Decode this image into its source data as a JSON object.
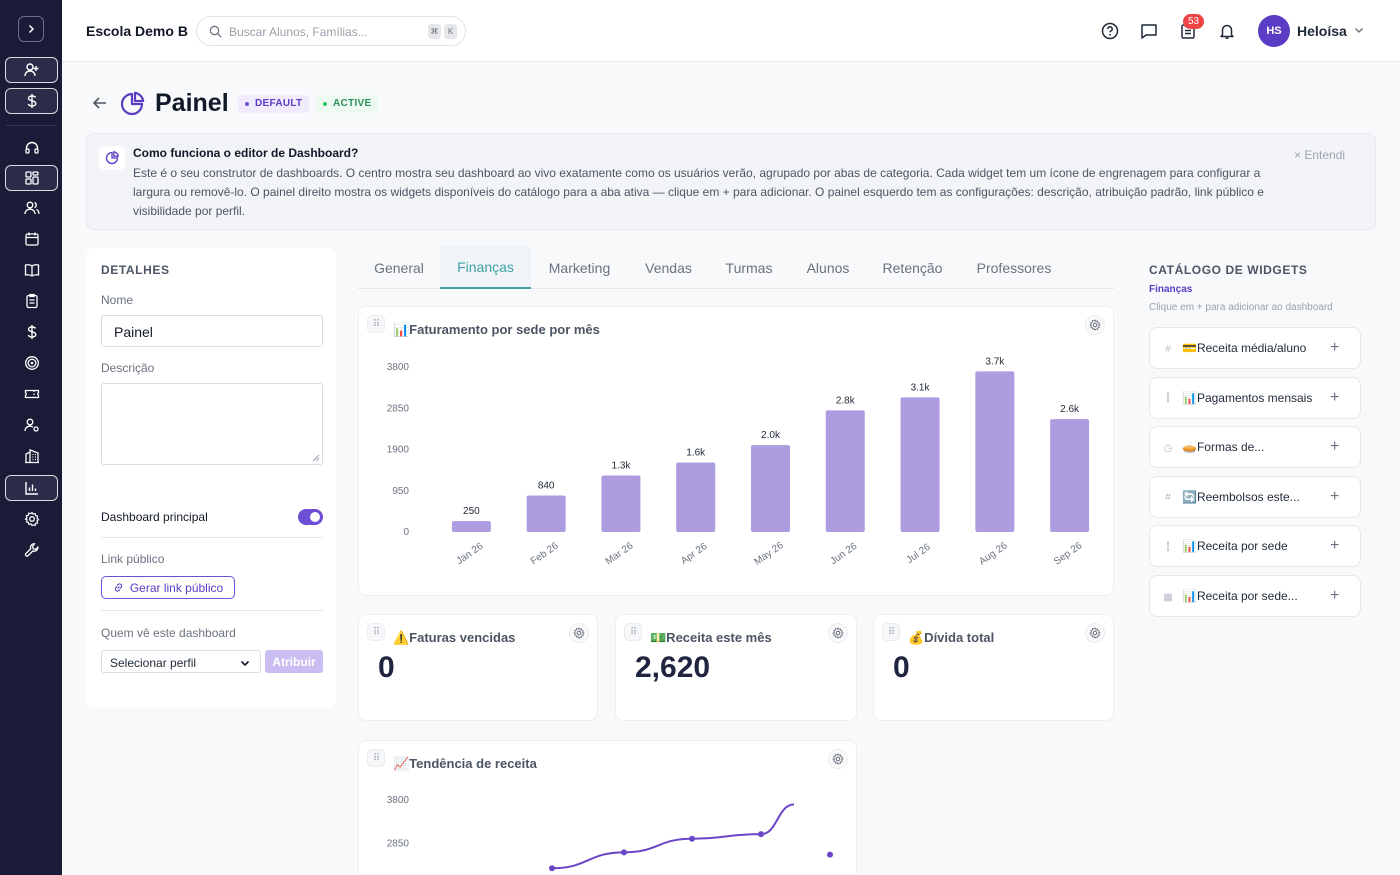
{
  "topbar": {
    "school": "Escola Demo B",
    "search_placeholder": "Buscar Alunos, Famílias...",
    "kbd1": "⌘",
    "kbd2": "K",
    "badge": "53",
    "avatar_initials": "HS",
    "user_name": "Heloísa"
  },
  "page": {
    "title": "Painel",
    "badge_default": "DEFAULT",
    "badge_active": "ACTIVE"
  },
  "info": {
    "title": "Como funciona o editor de Dashboard?",
    "body": "Este é o seu construtor de dashboards. O centro mostra seu dashboard ao vivo exatamente como os usuários verão, agrupado por abas de categoria. Cada widget tem um ícone de engrenagem para configurar a largura ou removê-lo. O painel direito mostra os widgets disponíveis do catálogo para a aba ativa — clique em + para adicionar. O painel esquerdo tem as configurações: descrição, atribuição padrão, link público e visibilidade por perfil.",
    "dismiss": "× Entendi"
  },
  "details": {
    "heading": "DETALHES",
    "name_label": "Nome",
    "name_value": "Painel",
    "desc_label": "Descrição",
    "principal_label": "Dashboard principal",
    "public_link_label": "Link público",
    "public_link_button": "Gerar link público",
    "who_sees_label": "Quem vê este dashboard",
    "select_value": "Selecionar perfil",
    "assign_button": "Atribuir"
  },
  "tabs": [
    "General",
    "Finanças",
    "Marketing",
    "Vendas",
    "Turmas",
    "Alunos",
    "Retenção",
    "Professores"
  ],
  "widgets": {
    "revenue_title": "📊Faturamento por sede por mês",
    "overdue_title": "⚠️Faturas vencidas",
    "overdue_value": "0",
    "month_title": "💵Receita este mês",
    "month_value": "2,620",
    "debt_title": "💰Dívida total",
    "debt_value": "0",
    "trend_title": "📈Tendência de receita"
  },
  "catalog": {
    "heading": "CATÁLOGO DE WIDGETS",
    "subtitle": "Finanças",
    "hint": "Clique em + para adicionar ao dashboard",
    "items": [
      {
        "label": "💳Receita média/aluno",
        "kind": "#"
      },
      {
        "label": "📊Pagamentos mensais",
        "kind": "bar"
      },
      {
        "label": "🥧Formas de...",
        "kind": "pie"
      },
      {
        "label": "🔄Reembolsos este...",
        "kind": "#"
      },
      {
        "label": "📊Receita por sede",
        "kind": "bar"
      },
      {
        "label": "📊Receita por sede...",
        "kind": "table"
      }
    ]
  },
  "colors": {
    "accent": "#6d4fd6",
    "bar": "#ad9ce0",
    "line": "#6a46c7",
    "tab_active": "#3fa2a8",
    "sidebar": "#1a1b36"
  },
  "chart_data": [
    {
      "type": "bar",
      "title": "Faturamento por sede por mês",
      "categories": [
        "Jan 26",
        "Feb 26",
        "Mar 26",
        "Apr 26",
        "May 26",
        "Jun 26",
        "Jul 26",
        "Aug 26",
        "Sep 26"
      ],
      "values": [
        250,
        840,
        1300,
        1600,
        2000,
        2800,
        3100,
        3700,
        2600
      ],
      "data_labels": [
        "250",
        "840",
        "1.3k",
        "1.6k",
        "2.0k",
        "2.8k",
        "3.1k",
        "3.7k",
        "2.6k"
      ],
      "yticks": [
        "3800",
        "2850",
        "1900",
        "950",
        "0"
      ],
      "ylim": [
        0,
        3800
      ]
    },
    {
      "type": "line",
      "title": "Tendência de receita",
      "yticks": [
        "3800",
        "2850"
      ],
      "values": [
        2300,
        2650,
        2950,
        3050,
        3700,
        2600
      ],
      "ylim": [
        0,
        3800
      ]
    }
  ]
}
